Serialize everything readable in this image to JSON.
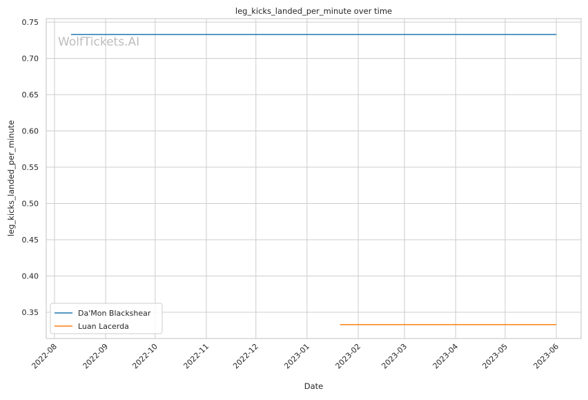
{
  "chart_data": {
    "type": "line",
    "title": "leg_kicks_landed_per_minute over time",
    "xlabel": "Date",
    "ylabel": "leg_kicks_landed_per_minute",
    "watermark": "WolfTickets.AI",
    "xlim": [
      "2022-07-27",
      "2023-06-16"
    ],
    "ylim": [
      0.3138,
      0.7548
    ],
    "x_ticks": [
      "2022-08",
      "2022-09",
      "2022-10",
      "2022-11",
      "2022-12",
      "2023-01",
      "2023-02",
      "2023-03",
      "2023-04",
      "2023-05",
      "2023-06"
    ],
    "y_ticks": [
      0.35,
      0.4,
      0.45,
      0.5,
      0.55,
      0.6,
      0.65,
      0.7,
      0.75
    ],
    "grid": true,
    "legend_position": "lower-left",
    "series": [
      {
        "name": "Da'Mon Blackshear",
        "color": "#1f77b4",
        "x": [
          "2022-08-11",
          "2023-06-01"
        ],
        "y": [
          0.733,
          0.733
        ]
      },
      {
        "name": "Luan Lacerda",
        "color": "#ff7f0e",
        "x": [
          "2023-01-21",
          "2023-06-01"
        ],
        "y": [
          0.333,
          0.333
        ]
      }
    ]
  }
}
